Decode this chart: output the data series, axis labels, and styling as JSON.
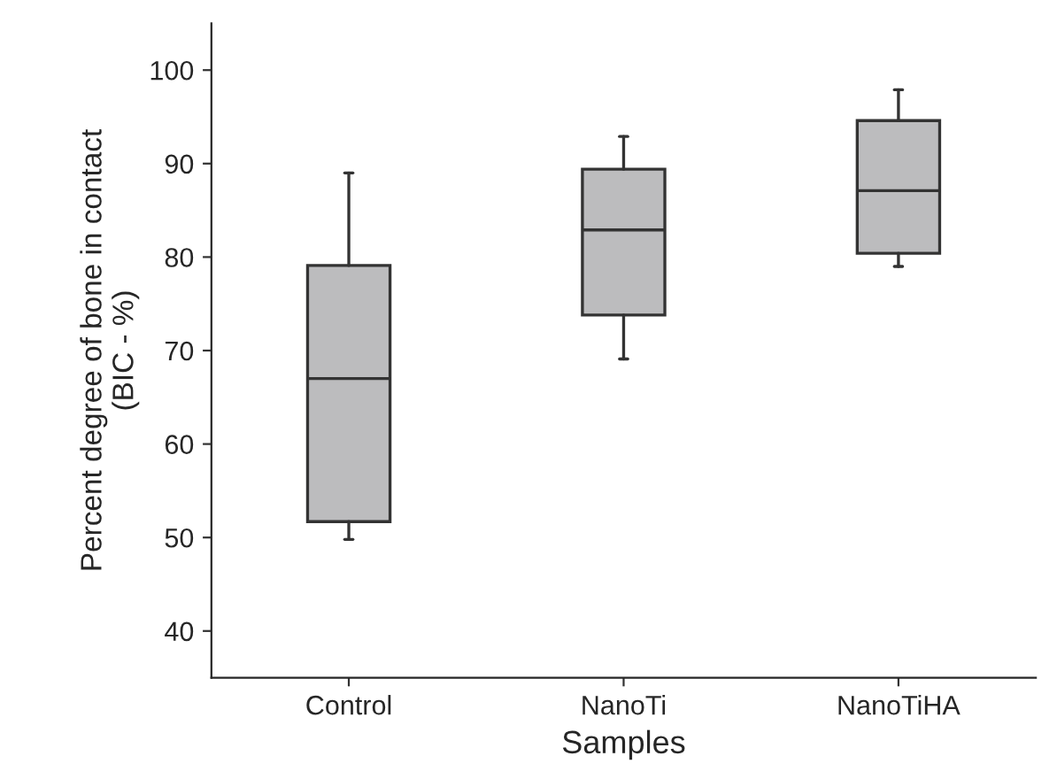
{
  "chart_data": {
    "type": "box",
    "xlabel": "Samples",
    "ylabel": "Percent degree of bone in contact\n(BIC - %)",
    "categories": [
      "Control",
      "NanoTi",
      "NanoTiHA"
    ],
    "boxes": [
      {
        "low": 49.8,
        "q1": 51.7,
        "median": 67.0,
        "q3": 79.1,
        "high": 89.0
      },
      {
        "low": 69.1,
        "q1": 73.8,
        "median": 82.9,
        "q3": 89.4,
        "high": 92.9
      },
      {
        "low": 79.0,
        "q1": 80.4,
        "median": 87.1,
        "q3": 94.6,
        "high": 97.9
      }
    ],
    "color": "#bcbcbe",
    "ylim": [
      35,
      105
    ],
    "yticks": [
      40,
      50,
      60,
      70,
      80,
      90,
      100
    ],
    "grid": false
  }
}
